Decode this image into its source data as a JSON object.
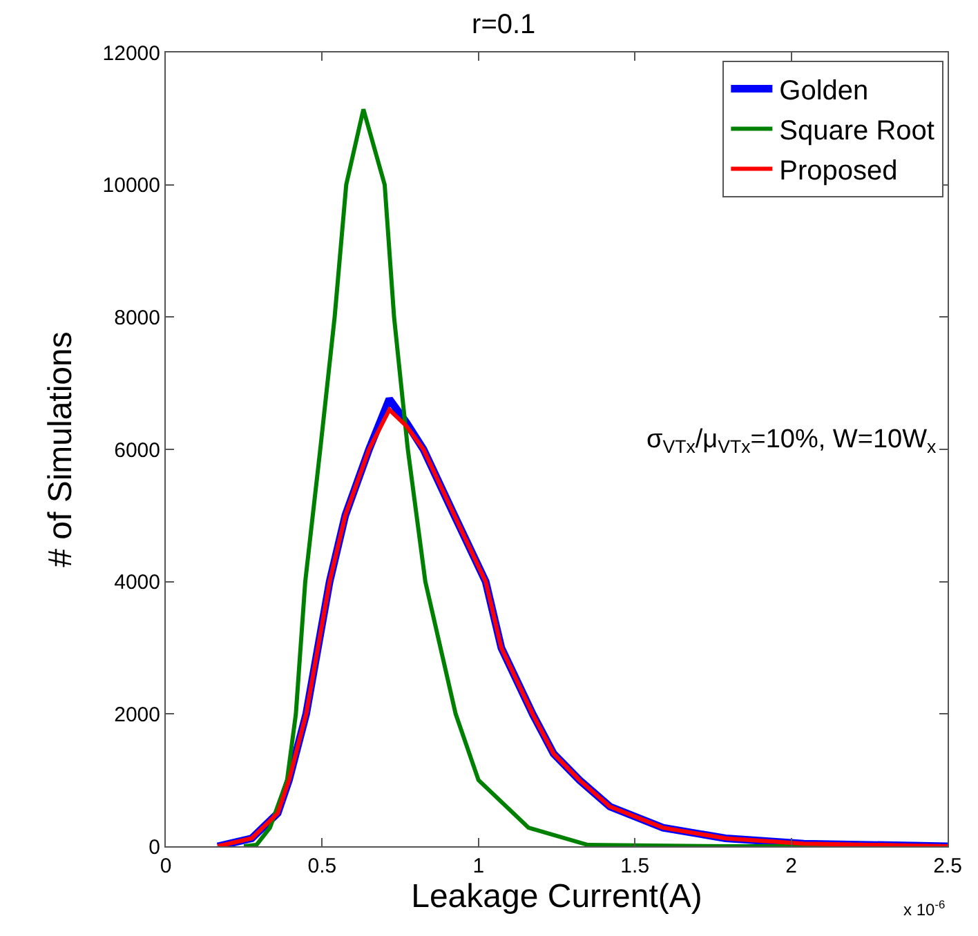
{
  "chart_data": {
    "type": "line",
    "title": "r=0.1",
    "xlabel": "Leakage Current(A)",
    "ylabel": "# of Simulations",
    "annotations": [
      "σ$_{VTx}$/μ$_{VTx}$=10%, W=10W$_{x}$",
      "x 10$^{-6}$"
    ],
    "xlim": [
      0,
      2.5
    ],
    "xticks": [
      0,
      0.5,
      1,
      1.5,
      2,
      2.5
    ],
    "ylim": [
      0,
      12000
    ],
    "yticks": [
      0,
      2000,
      4000,
      6000,
      8000,
      10000,
      12000
    ],
    "grid": false,
    "legend": "top right",
    "marker": "none",
    "line_style": "solid",
    "series": [
      {
        "name": "Golden",
        "color": "#0000ff",
        "x": [
          0.166,
          0.275,
          0.358,
          0.394,
          0.449,
          0.524,
          0.574,
          0.65,
          0.715,
          0.77,
          0.824,
          0.923,
          1.023,
          1.073,
          1.173,
          1.24,
          1.323,
          1.42,
          1.59,
          1.79,
          2.04,
          2.5
        ],
        "values": [
          0,
          120,
          500,
          1000,
          2000,
          4000,
          5000,
          6000,
          6760,
          6400,
          6000,
          5000,
          4000,
          3000,
          2000,
          1400,
          1000,
          600,
          280,
          120,
          40,
          0
        ]
      },
      {
        "name": "Square Root",
        "color": "#008000",
        "x": [
          0.25,
          0.29,
          0.333,
          0.388,
          0.416,
          0.446,
          0.494,
          0.54,
          0.577,
          0.632,
          0.7,
          0.73,
          0.774,
          0.83,
          0.927,
          1.0,
          1.16,
          1.35,
          1.8,
          2.5
        ],
        "values": [
          0,
          20,
          280,
          1000,
          2000,
          4000,
          6000,
          8000,
          10000,
          11140,
          10000,
          8000,
          6000,
          4000,
          2000,
          1000,
          280,
          20,
          0,
          0
        ]
      },
      {
        "name": "Proposed",
        "color": "#ff0000",
        "x": [
          0.166,
          0.275,
          0.358,
          0.394,
          0.449,
          0.524,
          0.574,
          0.65,
          0.715,
          0.77,
          0.824,
          0.923,
          1.023,
          1.073,
          1.173,
          1.24,
          1.323,
          1.42,
          1.59,
          1.79,
          2.04,
          2.5
        ],
        "values": [
          0,
          120,
          500,
          1000,
          2000,
          4000,
          5000,
          6000,
          6600,
          6350,
          6000,
          5000,
          4000,
          3000,
          2000,
          1400,
          1000,
          600,
          280,
          120,
          40,
          0
        ]
      }
    ]
  }
}
